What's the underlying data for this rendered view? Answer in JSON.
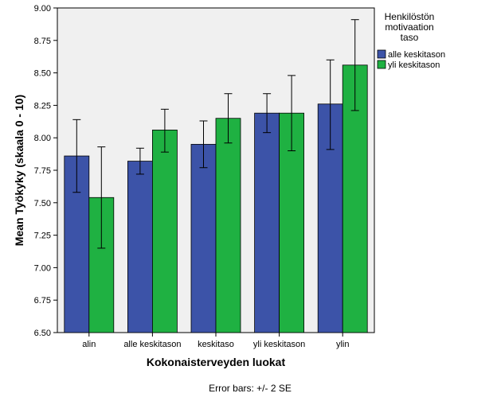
{
  "chart_data": {
    "type": "bar",
    "xlabel": "Kokonaisterveyden luokat",
    "ylabel": "Mean Työkyky (skaala 0 - 10)",
    "footnote": "Error bars: +/- 2 SE",
    "categories": [
      "alin",
      "alle keskitason",
      "keskitaso",
      "yli keskitason",
      "ylin"
    ],
    "ylim": [
      6.5,
      9.0
    ],
    "yticks": [
      "6.50",
      "6.75",
      "7.00",
      "7.25",
      "7.50",
      "7.75",
      "8.00",
      "8.25",
      "8.50",
      "8.75",
      "9.00"
    ],
    "legend": {
      "title_lines": [
        "Henkilöstön",
        "motivaation",
        "taso"
      ],
      "placement": "right"
    },
    "series": [
      {
        "name": "alle keskitason",
        "color": "#3c53a8",
        "values": [
          7.86,
          7.82,
          7.95,
          8.19,
          8.26
        ],
        "err_low": [
          7.58,
          7.72,
          7.77,
          8.04,
          7.91
        ],
        "err_high": [
          8.14,
          7.92,
          8.13,
          8.34,
          8.6
        ]
      },
      {
        "name": "yli keskitason",
        "color": "#1fb142",
        "values": [
          7.54,
          8.06,
          8.15,
          8.19,
          8.56
        ],
        "err_low": [
          7.15,
          7.89,
          7.96,
          7.9,
          8.21
        ],
        "err_high": [
          7.93,
          8.22,
          8.34,
          8.48,
          8.91
        ]
      }
    ]
  }
}
